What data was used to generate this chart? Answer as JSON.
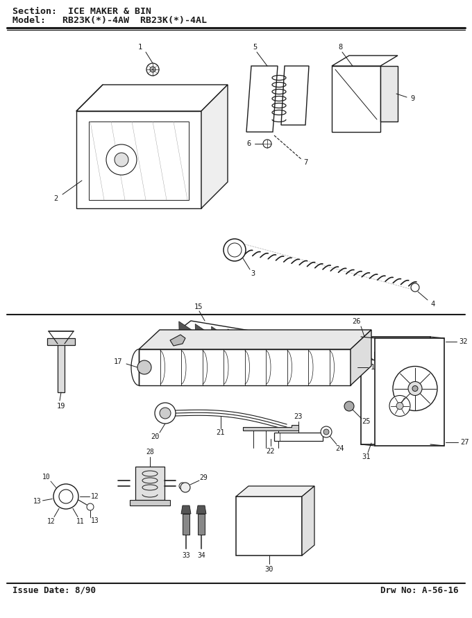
{
  "title_line1": "Section:  ICE MAKER & BIN",
  "title_line2": "Model:   RB23K(*)-4AW  RB23K(*)-4AL",
  "footer_left": "Issue Date: 8/90",
  "footer_right": "Drw No: A-56-16",
  "bg_color": "#ffffff",
  "line_color": "#1a1a1a",
  "text_color": "#1a1a1a",
  "title_fontsize": 9.5,
  "label_fontsize": 7.5,
  "footer_fontsize": 9
}
